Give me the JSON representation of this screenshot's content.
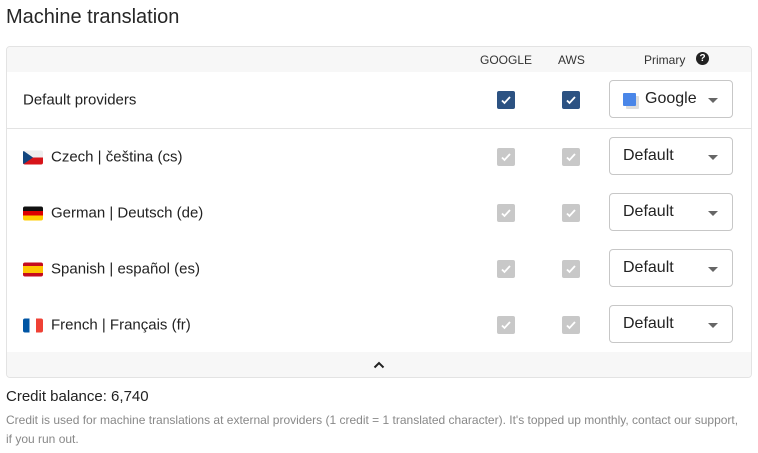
{
  "title": "Machine translation",
  "columns": {
    "google": "GOOGLE",
    "aws": "AWS",
    "primary": "Primary"
  },
  "default_row": {
    "label": "Default providers",
    "google": true,
    "aws": true,
    "primary": "Google"
  },
  "languages": [
    {
      "label": "Czech | čeština (cs)",
      "flag": "cz",
      "google": true,
      "aws": true,
      "primary": "Default"
    },
    {
      "label": "German | Deutsch (de)",
      "flag": "de",
      "google": true,
      "aws": true,
      "primary": "Default"
    },
    {
      "label": "Spanish | español (es)",
      "flag": "es",
      "google": true,
      "aws": true,
      "primary": "Default"
    },
    {
      "label": "French | Français (fr)",
      "flag": "fr",
      "google": true,
      "aws": true,
      "primary": "Default"
    }
  ],
  "credit": {
    "label": "Credit balance: 6,740",
    "note": "Credit is used for machine translations at external providers (1 credit = 1 translated character). It's topped up monthly, contact our support, if you run out."
  },
  "colors": {
    "checked": "#2c5282",
    "disabled": "#c8c8c8"
  }
}
